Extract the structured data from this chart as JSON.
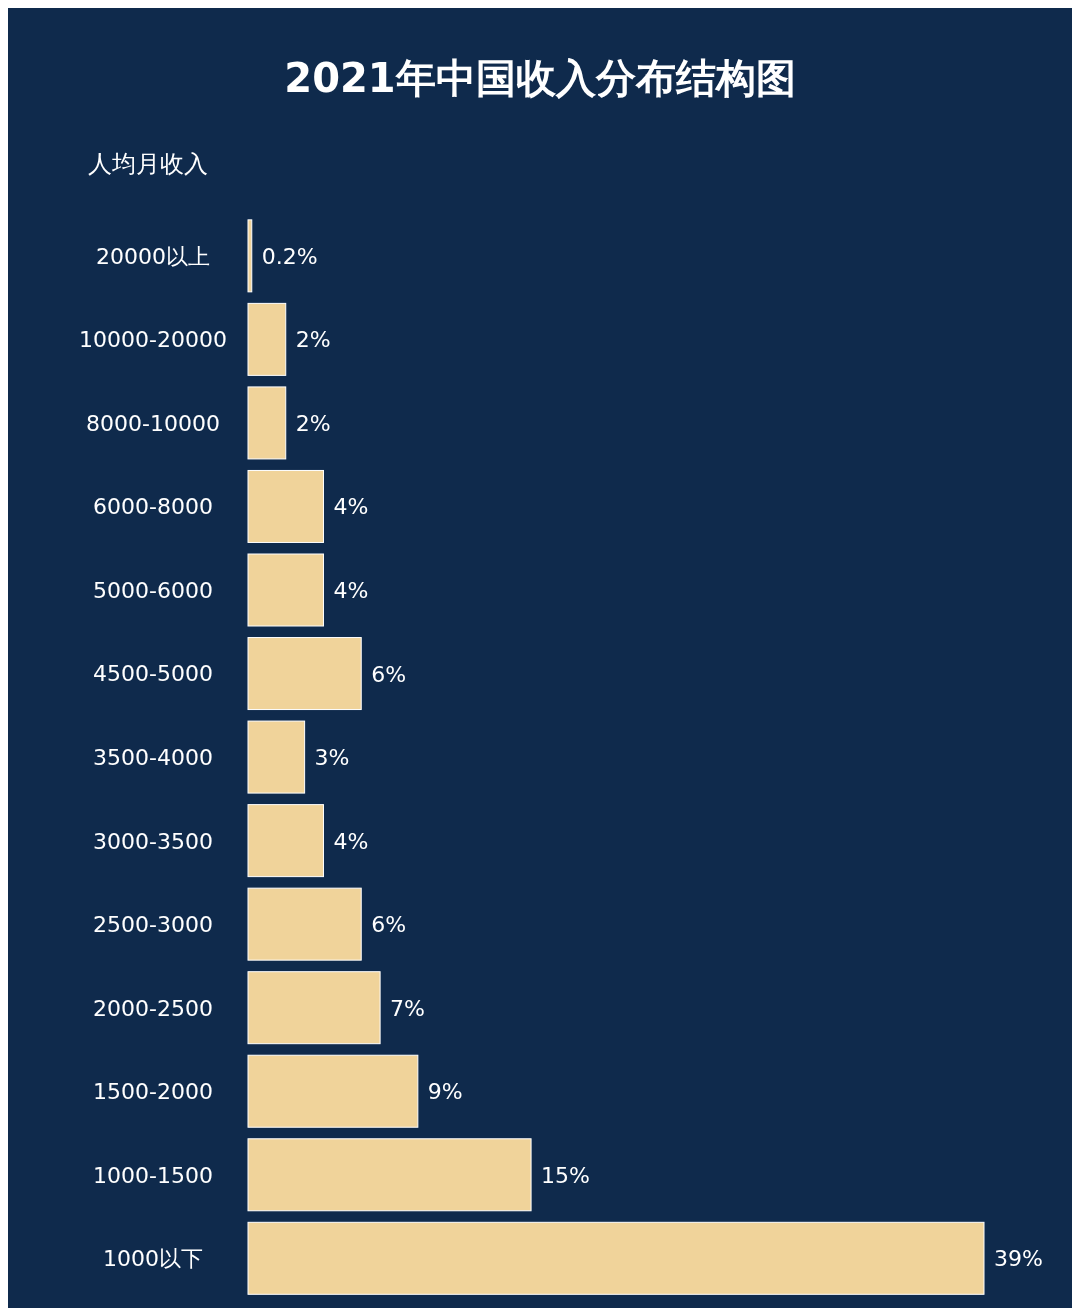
{
  "chart_data": {
    "type": "bar",
    "orientation": "horizontal",
    "title": "2021年中国收入分布结构图",
    "ylabel": "人均月收入",
    "categories": [
      "20000以上",
      "10000-20000",
      "8000-10000",
      "6000-8000",
      "5000-6000",
      "4500-5000",
      "3500-4000",
      "3000-3500",
      "2500-3000",
      "2000-2500",
      "1500-2000",
      "1000-1500",
      "1000以下"
    ],
    "values": [
      0.2,
      2,
      2,
      4,
      4,
      6,
      3,
      4,
      6,
      7,
      9,
      15,
      39
    ],
    "value_labels": [
      "0.2%",
      "2%",
      "2%",
      "4%",
      "4%",
      "6%",
      "3%",
      "4%",
      "6%",
      "7%",
      "9%",
      "15%",
      "39%"
    ],
    "color": "#f0d39a"
  }
}
